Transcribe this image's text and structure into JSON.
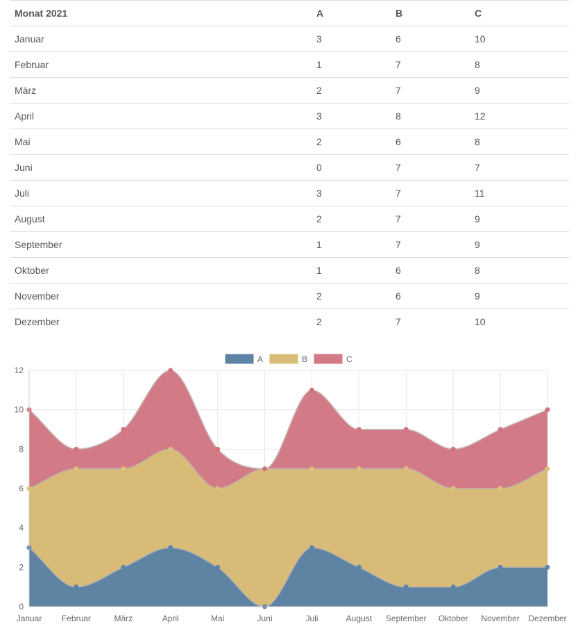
{
  "table": {
    "headers": [
      "Monat 2021",
      "A",
      "B",
      "C"
    ],
    "rows": [
      [
        "Januar",
        "3",
        "6",
        "10"
      ],
      [
        "Februar",
        "1",
        "7",
        "8"
      ],
      [
        "März",
        "2",
        "7",
        "9"
      ],
      [
        "April",
        "3",
        "8",
        "12"
      ],
      [
        "Mai",
        "2",
        "6",
        "8"
      ],
      [
        "Juni",
        "0",
        "7",
        "7"
      ],
      [
        "Juli",
        "3",
        "7",
        "11"
      ],
      [
        "August",
        "2",
        "7",
        "9"
      ],
      [
        "September",
        "1",
        "7",
        "9"
      ],
      [
        "Oktober",
        "1",
        "6",
        "8"
      ],
      [
        "November",
        "2",
        "6",
        "9"
      ],
      [
        "Dezember",
        "2",
        "7",
        "10"
      ]
    ]
  },
  "chart_data": {
    "type": "area",
    "categories": [
      "Januar",
      "Februar",
      "März",
      "April",
      "Mai",
      "Juni",
      "Juli",
      "August",
      "September",
      "Oktober",
      "November",
      "Dezember"
    ],
    "series": [
      {
        "name": "A",
        "values": [
          3,
          1,
          2,
          3,
          2,
          0,
          3,
          2,
          1,
          1,
          2,
          2
        ],
        "color": "#5b84ad",
        "fill": "#5f83a2"
      },
      {
        "name": "B",
        "values": [
          6,
          7,
          7,
          8,
          6,
          7,
          7,
          7,
          7,
          6,
          6,
          7
        ],
        "color": "#dcc272",
        "fill": "#d8bb76"
      },
      {
        "name": "C",
        "values": [
          10,
          8,
          9,
          12,
          8,
          7,
          11,
          9,
          9,
          8,
          9,
          10
        ],
        "color": "#d5707f",
        "fill": "#d27b87"
      }
    ],
    "yticks": [
      "0",
      "2",
      "4",
      "6",
      "8",
      "10",
      "12"
    ],
    "ylim": [
      0,
      12
    ],
    "grid": true,
    "legend": "top-center",
    "title": "",
    "xlabel": "",
    "ylabel": ""
  }
}
